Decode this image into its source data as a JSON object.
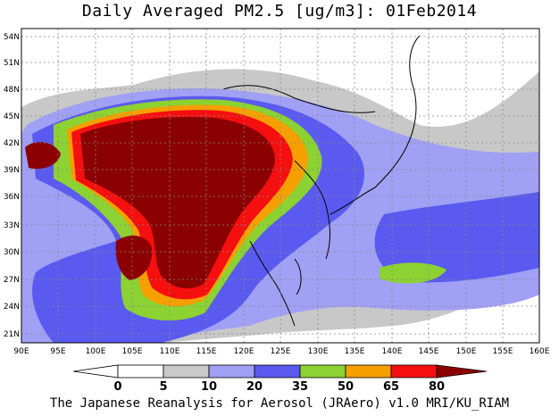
{
  "title": "Daily Averaged PM2.5 [ug/m3]: 01Feb2014",
  "credit": "The Japanese Reanalysis for Aerosol (JRAero) v1.0 MRI/KU_RIAM",
  "lat_labels": [
    "54N",
    "51N",
    "48N",
    "45N",
    "42N",
    "39N",
    "36N",
    "33N",
    "30N",
    "27N",
    "24N",
    "21N"
  ],
  "lon_labels": [
    "90E",
    "95E",
    "100E",
    "105E",
    "110E",
    "115E",
    "120E",
    "125E",
    "130E",
    "135E",
    "140E",
    "145E",
    "150E",
    "155E",
    "160E"
  ],
  "colorbar": {
    "labels": [
      "0",
      "5",
      "10",
      "20",
      "35",
      "50",
      "65",
      "80"
    ],
    "colors": [
      "#ffffff",
      "#c8c8c8",
      "#a0a0f5",
      "#5a5af0",
      "#8cd232",
      "#f5a000",
      "#f50f0f",
      "#8b0000"
    ]
  }
}
